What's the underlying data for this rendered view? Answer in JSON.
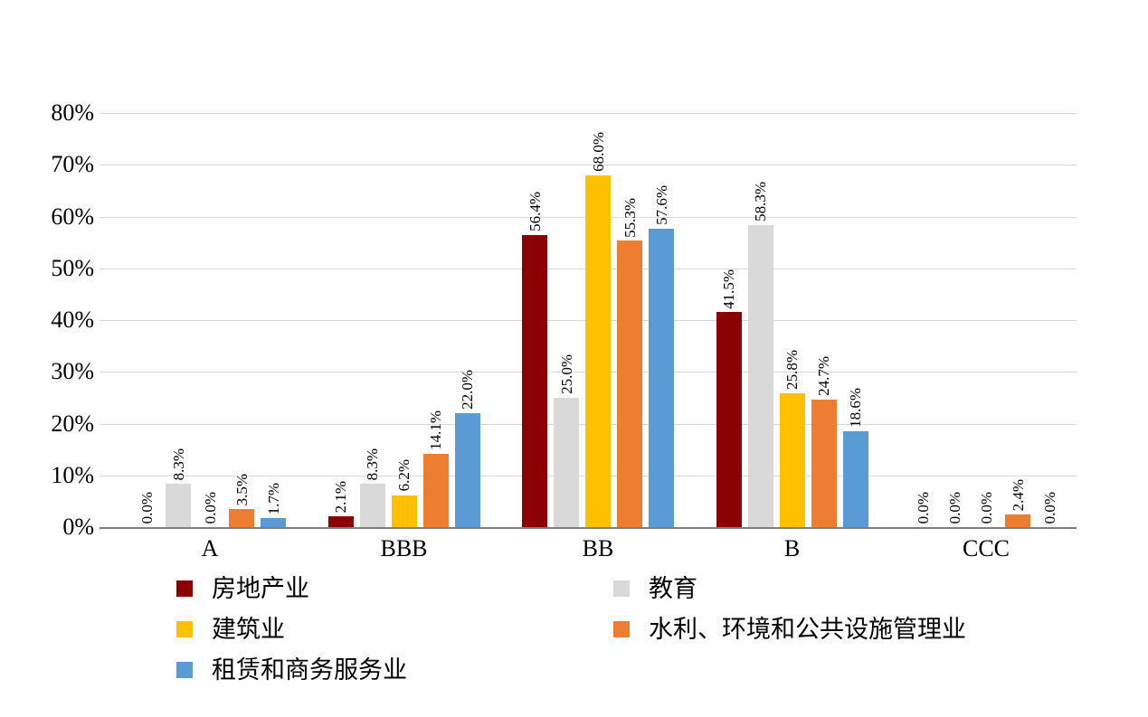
{
  "chart_data": {
    "type": "bar",
    "title": "",
    "xlabel": "",
    "ylabel": "",
    "categories": [
      "A",
      "BBB",
      "BB",
      "B",
      "CCC"
    ],
    "series": [
      {
        "name": "房地产业",
        "color": "#8B0000",
        "values": [
          0.0,
          2.1,
          56.4,
          41.5,
          0.0
        ]
      },
      {
        "name": "教育",
        "color": "#D9D9D9",
        "values": [
          8.3,
          8.3,
          25.0,
          58.3,
          0.0
        ]
      },
      {
        "name": "建筑业",
        "color": "#FFC000",
        "values": [
          0.0,
          6.2,
          68.0,
          25.8,
          0.0
        ]
      },
      {
        "name": "水利、环境和公共设施管理业",
        "color": "#ED7D31",
        "values": [
          3.5,
          14.1,
          55.3,
          24.7,
          2.4
        ]
      },
      {
        "name": "租赁和商务服务业",
        "color": "#5B9BD5",
        "values": [
          1.7,
          22.0,
          57.6,
          18.6,
          0.0
        ]
      }
    ],
    "data_labels": [
      [
        "0.0%",
        "2.1%",
        "56.4%",
        "41.5%",
        "0.0%"
      ],
      [
        "8.3%",
        "8.3%",
        "25.0%",
        "58.3%",
        "0.0%"
      ],
      [
        "0.0%",
        "6.2%",
        "68.0%",
        "25.8%",
        "0.0%"
      ],
      [
        "3.5%",
        "14.1%",
        "55.3%",
        "24.7%",
        "2.4%"
      ],
      [
        "1.7%",
        "22.0%",
        "57.6%",
        "18.6%",
        "0.0%"
      ]
    ],
    "ylim": [
      0,
      80
    ],
    "ytick_step": 10,
    "yticks": [
      "0%",
      "10%",
      "20%",
      "30%",
      "40%",
      "50%",
      "60%",
      "70%",
      "80%"
    ],
    "grid": true,
    "legend_position": "bottom",
    "legend_columns": [
      [
        "房地产业",
        "建筑业",
        "租赁和商务服务业"
      ],
      [
        "教育",
        "水利、环境和公共设施管理业"
      ]
    ]
  },
  "colors": {
    "background": "#FFFFFF",
    "gridline": "#D9D9D9",
    "axis_line": "#7F7F7F",
    "text": "#000000"
  }
}
